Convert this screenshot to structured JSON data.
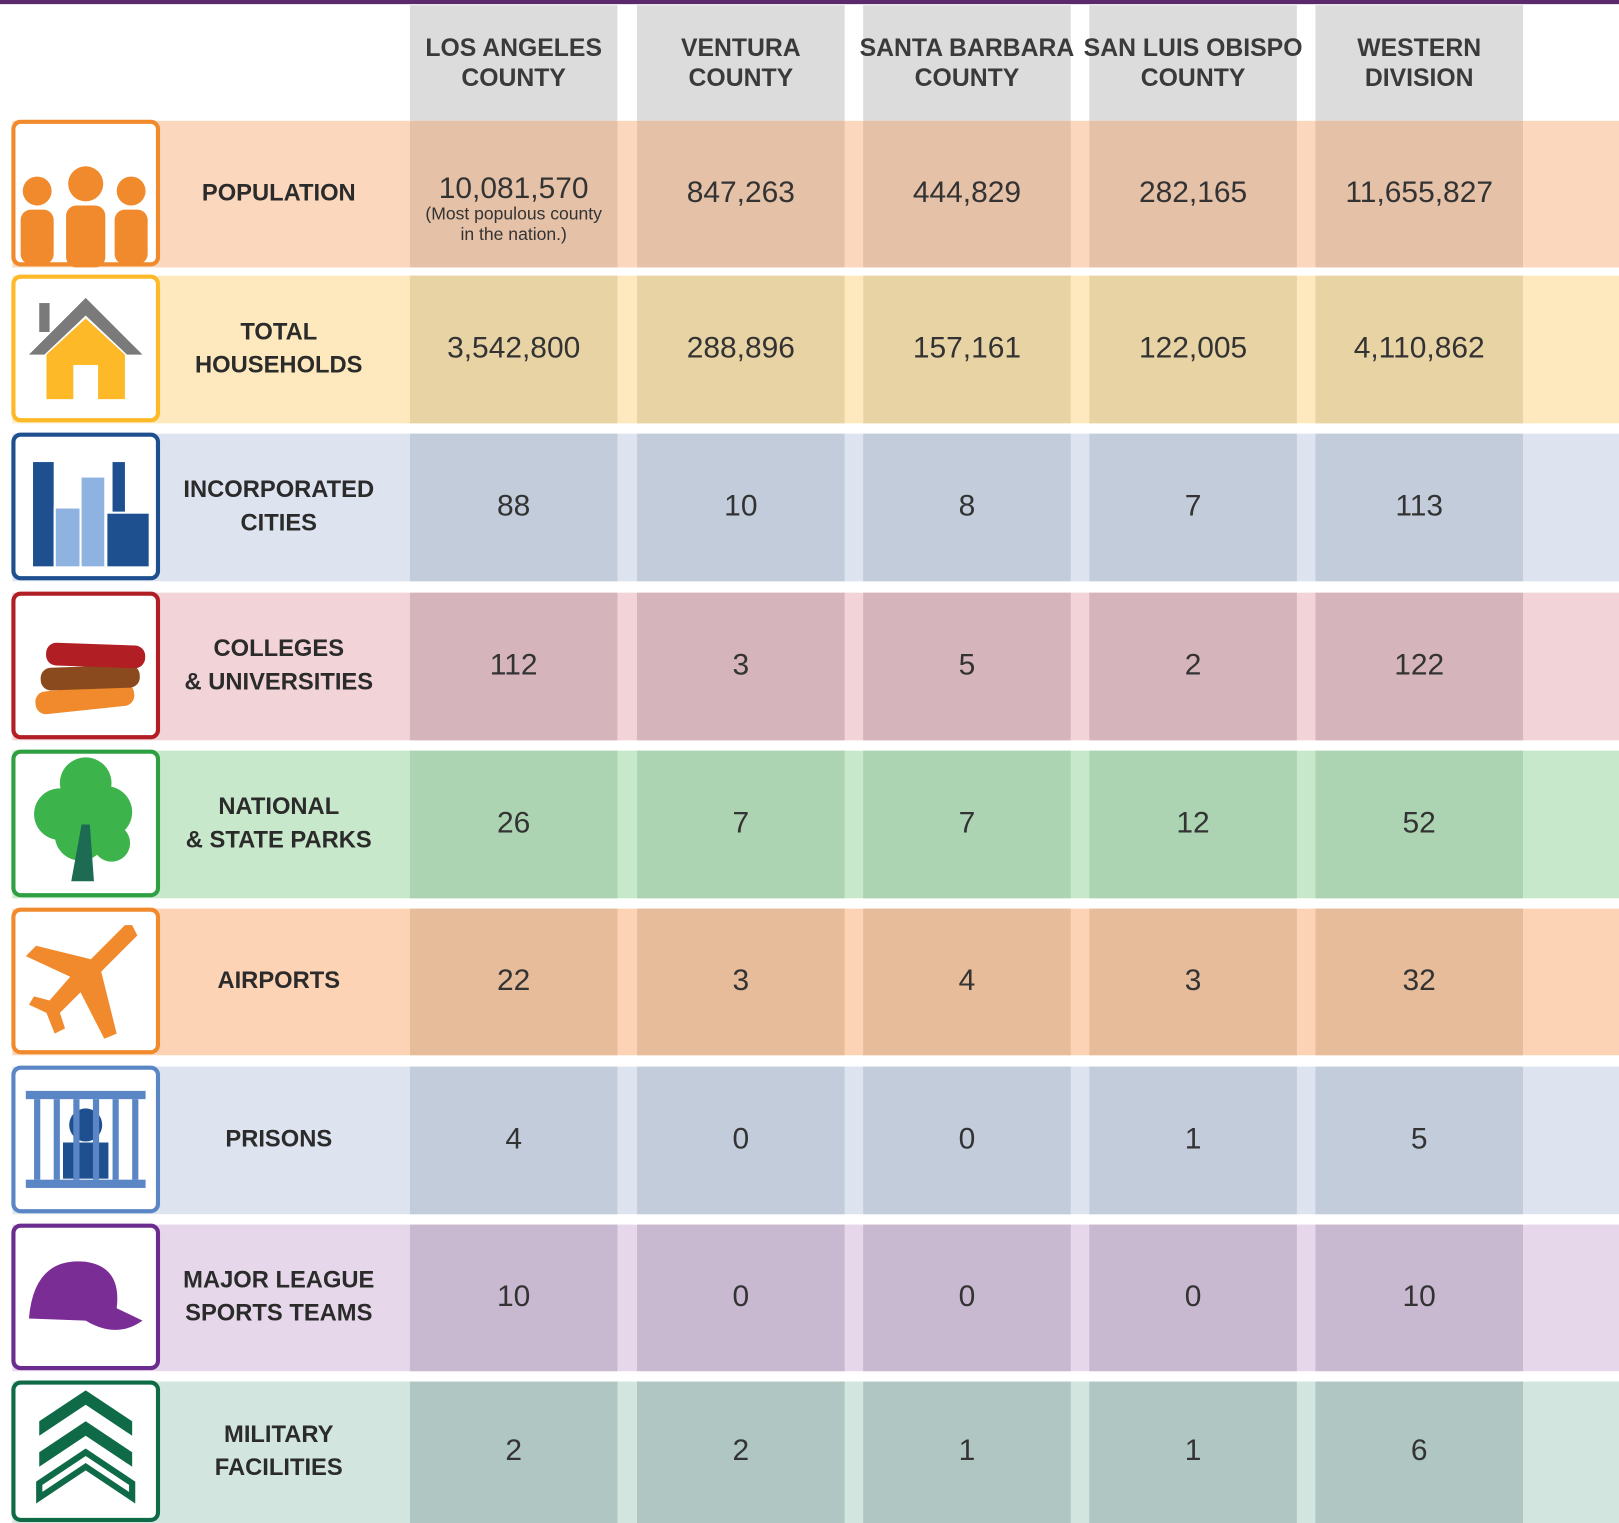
{
  "header": {
    "columns": [
      [
        "LOS ANGELES",
        "COUNTY"
      ],
      [
        "VENTURA",
        "COUNTY"
      ],
      [
        "SANTA BARBARA",
        "COUNTY"
      ],
      [
        "SAN LUIS OBISPO",
        "COUNTY"
      ],
      [
        "WESTERN",
        "DIVISION"
      ]
    ]
  },
  "rows": [
    {
      "label": [
        "POPULATION"
      ],
      "values": [
        "10,081,570",
        "847,263",
        "444,829",
        "282,165",
        "11,655,827"
      ],
      "note": [
        "(Most populous county",
        "in the nation.)"
      ]
    },
    {
      "label": [
        "TOTAL",
        "HOUSEHOLDS"
      ],
      "values": [
        "3,542,800",
        "288,896",
        "157,161",
        "122,005",
        "4,110,862"
      ]
    },
    {
      "label": [
        "INCORPORATED",
        "CITIES"
      ],
      "values": [
        "88",
        "10",
        "8",
        "7",
        "113"
      ]
    },
    {
      "label": [
        "COLLEGES",
        "& UNIVERSITIES"
      ],
      "values": [
        "112",
        "3",
        "5",
        "2",
        "122"
      ]
    },
    {
      "label": [
        "NATIONAL",
        "& STATE PARKS"
      ],
      "values": [
        "26",
        "7",
        "7",
        "12",
        "52"
      ]
    },
    {
      "label": [
        "AIRPORTS"
      ],
      "values": [
        "22",
        "3",
        "4",
        "3",
        "32"
      ]
    },
    {
      "label": [
        "PRISONS"
      ],
      "values": [
        "4",
        "0",
        "0",
        "1",
        "5"
      ]
    },
    {
      "label": [
        "MAJOR LEAGUE",
        "SPORTS TEAMS"
      ],
      "values": [
        "10",
        "0",
        "0",
        "0",
        "10"
      ]
    },
    {
      "label": [
        "MILITARY",
        "FACILITIES"
      ],
      "values": [
        "2",
        "2",
        "1",
        "1",
        "6"
      ]
    }
  ]
}
